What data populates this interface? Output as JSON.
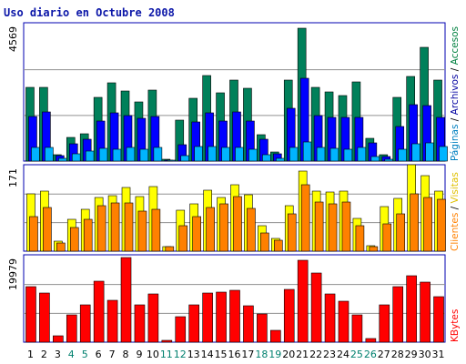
{
  "title": "Uso diario en Octubre 2008",
  "chart_data": [
    {
      "type": "bar",
      "title": "",
      "ylabel_left": "4569",
      "ymax": 4569,
      "side_labels": [
        "Páginas",
        "Archivos",
        "Accesos"
      ],
      "side_label_separator": " / ",
      "side_label_colors": [
        "#0080c0",
        "#0000a0",
        "#008040"
      ],
      "categories": [
        "1",
        "2",
        "3",
        "4",
        "5",
        "6",
        "7",
        "8",
        "9",
        "10",
        "11",
        "12",
        "13",
        "14",
        "15",
        "16",
        "17",
        "18",
        "19",
        "20",
        "21",
        "22",
        "23",
        "24",
        "25",
        "26",
        "27",
        "28",
        "29",
        "30",
        "31"
      ],
      "series": [
        {
          "name": "Accesos",
          "color": "#00805a",
          "values": [
            2470,
            2470,
            200,
            800,
            900,
            2120,
            2620,
            2350,
            1980,
            2370,
            60,
            1360,
            2110,
            2870,
            2290,
            2720,
            2430,
            880,
            310,
            2700,
            4460,
            2470,
            2330,
            2200,
            2650,
            770,
            200,
            2120,
            2830,
            3820,
            2720
          ]
        },
        {
          "name": "Archivos",
          "color": "#0000ff",
          "values": [
            1500,
            1650,
            170,
            580,
            720,
            1350,
            1610,
            1530,
            1440,
            1480,
            30,
            560,
            1310,
            1600,
            1350,
            1650,
            1330,
            740,
            250,
            1760,
            2770,
            1520,
            1460,
            1450,
            1470,
            600,
            160,
            1160,
            1890,
            1860,
            1470
          ]
        },
        {
          "name": "Páginas",
          "color": "#00b4ff",
          "values": [
            450,
            470,
            90,
            240,
            330,
            430,
            390,
            470,
            400,
            450,
            10,
            170,
            490,
            480,
            450,
            460,
            390,
            210,
            90,
            460,
            640,
            460,
            430,
            400,
            450,
            160,
            70,
            410,
            570,
            600,
            480
          ]
        }
      ]
    },
    {
      "type": "bar",
      "title": "",
      "ylabel_left": "171",
      "ymax": 171,
      "side_labels": [
        "Clientes",
        "Visitas"
      ],
      "side_label_separator": " / ",
      "side_label_colors": [
        "#ff8000",
        "#e0c000"
      ],
      "categories": [
        "1",
        "2",
        "3",
        "4",
        "5",
        "6",
        "7",
        "8",
        "9",
        "10",
        "11",
        "12",
        "13",
        "14",
        "15",
        "16",
        "17",
        "18",
        "19",
        "20",
        "21",
        "22",
        "23",
        "24",
        "25",
        "26",
        "27",
        "28",
        "29",
        "30",
        "31"
      ],
      "series": [
        {
          "name": "Visitas",
          "color": "#ffff00",
          "values": [
            115,
            122,
            20,
            65,
            84,
            108,
            113,
            128,
            110,
            131,
            10,
            82,
            95,
            123,
            108,
            134,
            114,
            51,
            26,
            92,
            161,
            121,
            119,
            122,
            66,
            11,
            90,
            107,
            175,
            152,
            121
          ]
        },
        {
          "name": "Clientes",
          "color": "#ff8000",
          "values": [
            70,
            88,
            17,
            47,
            64,
            92,
            97,
            97,
            80,
            85,
            10,
            52,
            70,
            88,
            95,
            110,
            87,
            36,
            22,
            76,
            134,
            100,
            96,
            99,
            52,
            9,
            56,
            75,
            116,
            108,
            104
          ]
        }
      ]
    },
    {
      "type": "bar",
      "title": "",
      "ylabel_left": "19979",
      "ymax": 19979,
      "side_labels": [
        "KBytes"
      ],
      "side_label_separator": " / ",
      "side_label_colors": [
        "#ff0000"
      ],
      "categories": [
        "1",
        "2",
        "3",
        "4",
        "5",
        "6",
        "7",
        "8",
        "9",
        "10",
        "11",
        "12",
        "13",
        "14",
        "15",
        "16",
        "17",
        "18",
        "19",
        "20",
        "21",
        "22",
        "23",
        "24",
        "25",
        "26",
        "27",
        "28",
        "29",
        "30",
        "31"
      ],
      "series": [
        {
          "name": "KBytes",
          "color": "#ff0000",
          "values": [
            12870,
            11470,
            1480,
            6410,
            8760,
            14270,
            9740,
            19780,
            8780,
            11170,
            500,
            6040,
            8710,
            11420,
            11680,
            12020,
            8470,
            6690,
            2740,
            12330,
            19040,
            16190,
            11180,
            9630,
            6310,
            830,
            8670,
            12880,
            15420,
            13990,
            10680
          ]
        }
      ]
    }
  ],
  "x_labels": [
    "1",
    "2",
    "3",
    "4",
    "5",
    "6",
    "7",
    "8",
    "9",
    "10",
    "11",
    "12",
    "13",
    "14",
    "15",
    "16",
    "17",
    "18",
    "19",
    "20",
    "21",
    "22",
    "23",
    "24",
    "25",
    "26",
    "27",
    "28",
    "29",
    "30",
    "31"
  ],
  "weekend_days": [
    "4",
    "5",
    "11",
    "12",
    "18",
    "19",
    "25",
    "26"
  ],
  "colors": {
    "title": "#0b16a8",
    "weekday_label": "#000000",
    "weekend_label": "#00806e",
    "frame": "#0000b0",
    "grid": "#909090"
  }
}
